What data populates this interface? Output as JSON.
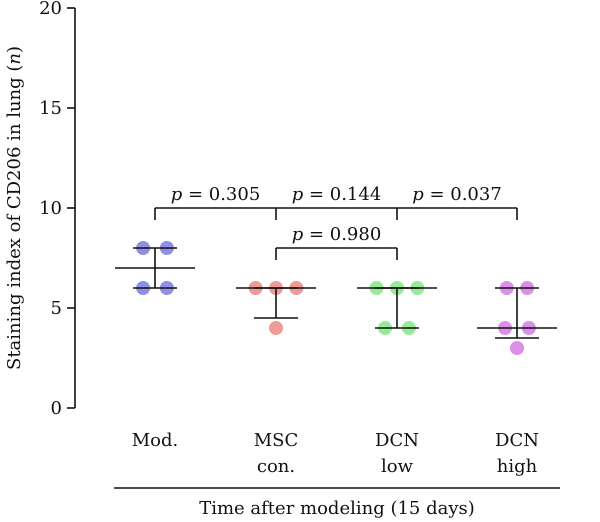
{
  "chart_data": {
    "type": "scatter",
    "title": "",
    "ylabel_prefix": "Staining index of CD206 in lung (",
    "ylabel_var": "n",
    "ylabel_suffix": ")",
    "xlabel": "Time after modeling (15 days)",
    "ylim": [
      0,
      20
    ],
    "yticks": [
      0,
      5,
      10,
      15,
      20
    ],
    "ytick_labels": [
      "0",
      "5",
      "10",
      "15",
      "20"
    ],
    "categories": [
      {
        "line1": "Mod.",
        "line2": ""
      },
      {
        "line1": "MSC",
        "line2": "con."
      },
      {
        "line1": "DCN",
        "line2": "low"
      },
      {
        "line1": "DCN",
        "line2": "high"
      }
    ],
    "groups": [
      {
        "color": "#8f8fe8",
        "points": [
          [
            -0.35,
            8
          ],
          [
            0.35,
            8
          ],
          [
            -0.35,
            6
          ],
          [
            0.35,
            6
          ]
        ],
        "mean": 7.0,
        "err_low": 6.0,
        "err_high": 8.0
      },
      {
        "color": "#f09a98",
        "points": [
          [
            -0.6,
            6
          ],
          [
            0,
            6
          ],
          [
            0.6,
            6
          ],
          [
            0,
            4
          ]
        ],
        "mean": 6.0,
        "err_low": 4.5,
        "err_high": 6.0
      },
      {
        "color": "#98ea98",
        "points": [
          [
            -0.6,
            6
          ],
          [
            0,
            6
          ],
          [
            0.6,
            6
          ],
          [
            -0.35,
            4
          ],
          [
            0.35,
            4
          ]
        ],
        "mean": 6.0,
        "err_low": 4.0,
        "err_high": 6.0
      },
      {
        "color": "#dc8fe8",
        "points": [
          [
            -0.3,
            6
          ],
          [
            0.3,
            6
          ],
          [
            -0.35,
            4
          ],
          [
            0.35,
            4
          ],
          [
            0,
            3
          ]
        ],
        "mean": 4.0,
        "err_low": 3.5,
        "err_high": 6.0
      }
    ],
    "comparisons": [
      {
        "from": 0,
        "to": 3,
        "y": 10,
        "drops": [
          0,
          1,
          2,
          3
        ],
        "labels": [
          {
            "between": [
              0,
              1
            ],
            "p": "p",
            "rest": " = 0.305"
          },
          {
            "between": [
              1,
              2
            ],
            "p": "p",
            "rest": " = 0.144"
          },
          {
            "between": [
              2,
              3
            ],
            "p": "p",
            "rest": " = 0.037"
          }
        ]
      },
      {
        "from": 1,
        "to": 2,
        "y": 8,
        "drops": [
          1,
          2
        ],
        "labels": [
          {
            "between": [
              1,
              2
            ],
            "p": "p",
            "rest": " = 0.980"
          }
        ]
      }
    ]
  }
}
